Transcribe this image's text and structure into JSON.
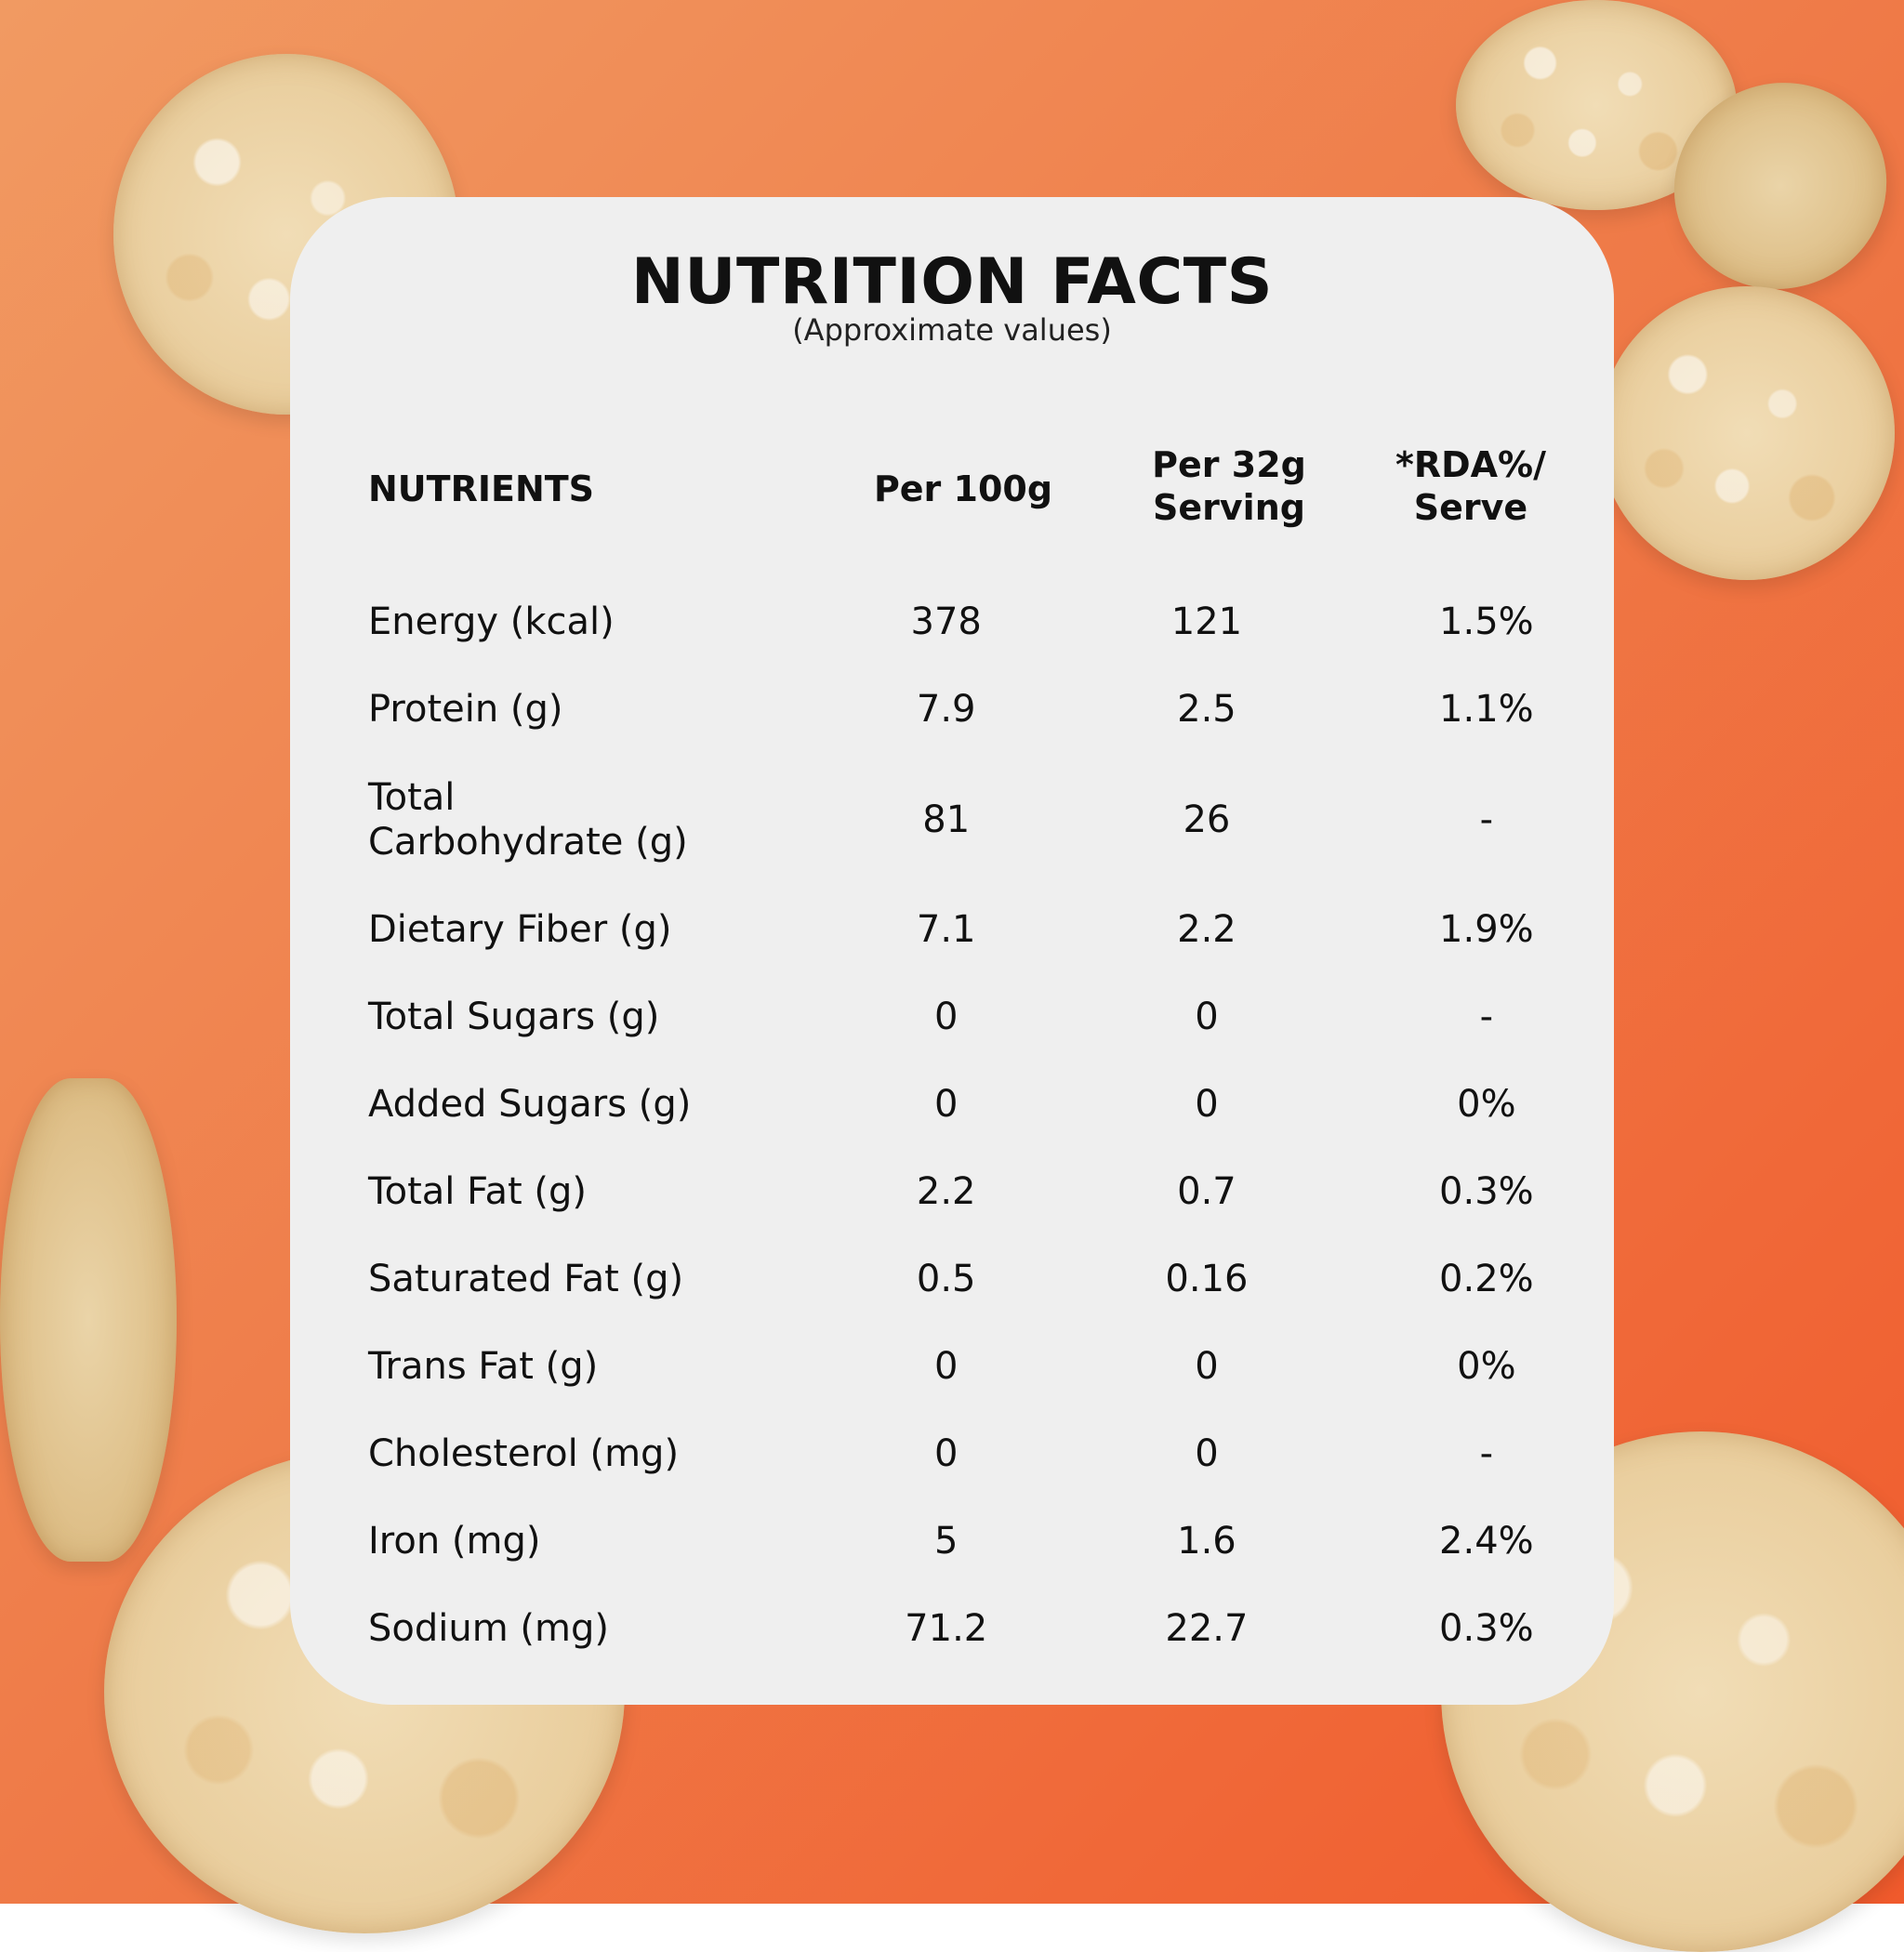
{
  "title": "NUTRITION FACTS",
  "subtitle": "(Approximate values)",
  "headers": {
    "nutrients": "NUTRIENTS",
    "per100": "Per 100g",
    "per32_line1": "Per 32g",
    "per32_line2": "Serving",
    "rda_line1": "*RDA%/",
    "rda_line2": "Serve"
  },
  "rows": [
    {
      "name": "Energy (kcal)",
      "per100": "378",
      "per32": "121",
      "rda": "1.5%"
    },
    {
      "name": "Protein (g)",
      "per100": "7.9",
      "per32": "2.5",
      "rda": "1.1%"
    },
    {
      "name_line1": "Total",
      "name_line2": "Carbohydrate (g)",
      "per100": "81",
      "per32": "26",
      "rda": "-"
    },
    {
      "name": "Dietary Fiber (g)",
      "per100": "7.1",
      "per32": "2.2",
      "rda": "1.9%"
    },
    {
      "name": "Total Sugars (g)",
      "per100": "0",
      "per32": "0",
      "rda": "-"
    },
    {
      "name": "Added Sugars (g)",
      "per100": "0",
      "per32": "0",
      "rda": "0%"
    },
    {
      "name": "Total Fat (g)",
      "per100": "2.2",
      "per32": "0.7",
      "rda": "0.3%"
    },
    {
      "name": "Saturated Fat (g)",
      "per100": "0.5",
      "per32": "0.16",
      "rda": "0.2%"
    },
    {
      "name": "Trans Fat (g)",
      "per100": "0",
      "per32": "0",
      "rda": "0%"
    },
    {
      "name": "Cholesterol (mg)",
      "per100": "0",
      "per32": "0",
      "rda": "-"
    },
    {
      "name": "Iron (mg)",
      "per100": "5",
      "per32": "1.6",
      "rda": "2.4%"
    },
    {
      "name": "Sodium (mg)",
      "per100": "71.2",
      "per32": "22.7",
      "rda": "0.3%"
    }
  ],
  "colors": {
    "background_start": "#f19a62",
    "background_end": "#f05a2c",
    "card": "#efefef",
    "text": "#111111"
  }
}
